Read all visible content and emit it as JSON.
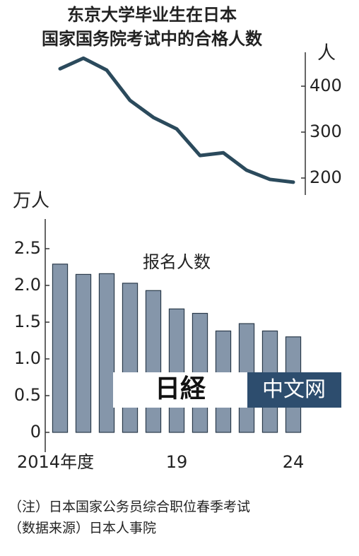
{
  "chart_data": [
    {
      "type": "line",
      "title": [
        "东京大学毕业生在日本",
        "国家国务院考试中的合格人数"
      ],
      "y_label": "人",
      "x": [
        2014,
        2015,
        2016,
        2017,
        2018,
        2019,
        2020,
        2021,
        2022,
        2023,
        2024
      ],
      "xlim": [
        2013.5,
        2024.5
      ],
      "series": [
        {
          "color": "#2b4a5c",
          "values": [
            438,
            461,
            435,
            369,
            332,
            307,
            249,
            255,
            217,
            197,
            191
          ]
        }
      ],
      "ylim": [
        180,
        470
      ],
      "yticks": [
        200,
        300,
        400
      ],
      "axis_side": "right"
    },
    {
      "type": "bar",
      "y_label": "万人",
      "categories": [
        "2014年度",
        null,
        null,
        null,
        null,
        "19",
        null,
        null,
        null,
        null,
        "24"
      ],
      "series": [
        {
          "name": "报名人数",
          "color": "#8596aa",
          "values": [
            2.29,
            2.15,
            2.16,
            2.03,
            1.93,
            1.68,
            1.62,
            1.38,
            1.48,
            1.38,
            1.3
          ]
        }
      ],
      "ylim": [
        0,
        2.9
      ],
      "yticks": [
        0,
        0.5,
        {
          "value": 1,
          "label": "1.0"
        },
        1.5,
        {
          "value": 2,
          "label": "2.0"
        },
        2.5
      ],
      "axis_side": "left"
    }
  ],
  "watermark": {
    "logo": "日経",
    "text": "中文网"
  },
  "notes": [
    "（注）日本国家公务员综合职位春季考试",
    "（数据来源）日本人事院"
  ]
}
